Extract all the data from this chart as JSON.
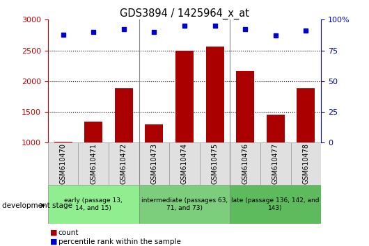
{
  "title": "GDS3894 / 1425964_x_at",
  "samples": [
    "GSM610470",
    "GSM610471",
    "GSM610472",
    "GSM610473",
    "GSM610474",
    "GSM610475",
    "GSM610476",
    "GSM610477",
    "GSM610478"
  ],
  "counts": [
    1020,
    1340,
    1880,
    1300,
    2500,
    2560,
    2170,
    1450,
    1880
  ],
  "percentiles": [
    88,
    90,
    92,
    90,
    95,
    95,
    92,
    87,
    91
  ],
  "groups": [
    {
      "label": "early (passage 13,\n14, and 15)",
      "start": 0,
      "end": 3,
      "color": "#90EE90"
    },
    {
      "label": "intermediate (passages 63,\n71, and 73)",
      "start": 3,
      "end": 6,
      "color": "#7CCD7C"
    },
    {
      "label": "late (passage 136, 142, and\n143)",
      "start": 6,
      "end": 9,
      "color": "#5DBB5D"
    }
  ],
  "bar_color": "#AA0000",
  "dot_color": "#0000CC",
  "ylim_left": [
    1000,
    3000
  ],
  "ylim_right": [
    0,
    100
  ],
  "yticks_left": [
    1000,
    1500,
    2000,
    2500,
    3000
  ],
  "yticks_right": [
    0,
    25,
    50,
    75,
    100
  ],
  "axis_color_left": "#CC0000",
  "axis_color_right": "#0000CC",
  "dev_stage_label": "development stage"
}
